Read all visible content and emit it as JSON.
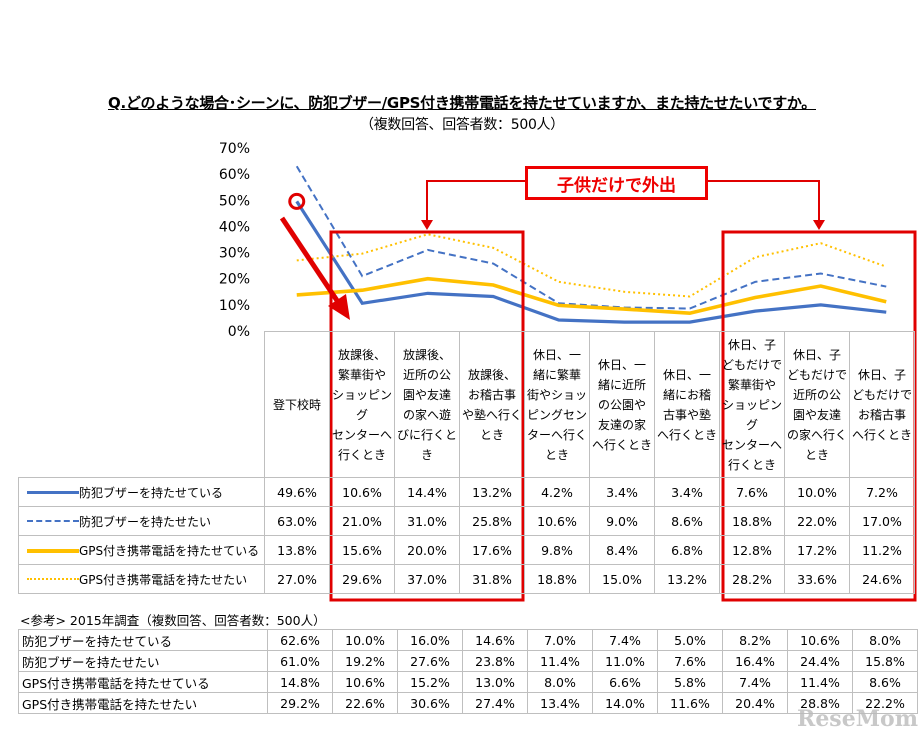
{
  "title": "Q.どのような場合･シーンに、防犯ブザー/GPS付き携帯電話を持たせていますか、また持たせたいですか。",
  "subtitle": "（複数回答、回答者数：500人）",
  "callout": "子供だけで外出",
  "reference_title": "<参考> 2015年調査（複数回答、回答者数：500人）",
  "logo": "ReseMom",
  "colors": {
    "buzzer_have": "#4472C4",
    "buzzer_want": "#4472C4",
    "gps_have": "#FFC000",
    "gps_want": "#FFC000",
    "highlight": "#E00000"
  },
  "chart_data": {
    "type": "line",
    "ylim": [
      0,
      70
    ],
    "yticks": [
      "0%",
      "10%",
      "20%",
      "30%",
      "40%",
      "50%",
      "60%",
      "70%"
    ],
    "categories": [
      "登下校時",
      "放課後、繁華街やショッピングセンターへ行くとき",
      "放課後、近所の公園や友達の家へ遊びに行くとき",
      "放課後、お稽古事や塾へ行くとき",
      "休日、一緒に繁華街やショッピングセンターへ行くとき",
      "休日、一緒に近所の公園や友達の家へ行くとき",
      "休日、一緒にお稽古事や塾へ行くとき",
      "休日、子どもだけで繁華街やショッピングセンターへ行くとき",
      "休日、子どもだけで近所の公園や友達の家へ行くとき",
      "休日、子どもだけでお稽古事へ行くとき"
    ],
    "category_lines": [
      [
        "登下校時"
      ],
      [
        "放課後、",
        "繁華街や",
        "ショッピング",
        "センターへ",
        "行くとき"
      ],
      [
        "放課後、",
        "近所の公",
        "園や友達",
        "の家へ遊",
        "びに行くと",
        "き"
      ],
      [
        "放課後、",
        "お稽古事",
        "や塾へ行く",
        "とき"
      ],
      [
        "休日、一",
        "緒に繁華",
        "街やショッ",
        "ピングセン",
        "ターへ行く",
        "とき"
      ],
      [
        "休日、一",
        "緒に近所",
        "の公園や",
        "友達の家",
        "へ行くとき"
      ],
      [
        "休日、一",
        "緒にお稽",
        "古事や塾",
        "へ行くとき"
      ],
      [
        "休日、子",
        "どもだけで",
        "繁華街や",
        "ショッピング",
        "センターへ",
        "行くとき"
      ],
      [
        "休日、子",
        "どもだけで",
        "近所の公",
        "園や友達",
        "の家へ行く",
        "とき"
      ],
      [
        "休日、子",
        "どもだけで",
        "お稽古事",
        "へ行くとき"
      ]
    ],
    "series": [
      {
        "name": "防犯ブザーを持たせている",
        "style": "solid-blue",
        "values": [
          49.6,
          10.6,
          14.4,
          13.2,
          4.2,
          3.4,
          3.4,
          7.6,
          10.0,
          7.2
        ],
        "labels": [
          "49.6%",
          "10.6%",
          "14.4%",
          "13.2%",
          "4.2%",
          "3.4%",
          "3.4%",
          "7.6%",
          "10.0%",
          "7.2%"
        ]
      },
      {
        "name": "防犯ブザーを持たせたい",
        "style": "dashed-blue",
        "values": [
          63.0,
          21.0,
          31.0,
          25.8,
          10.6,
          9.0,
          8.6,
          18.8,
          22.0,
          17.0
        ],
        "labels": [
          "63.0%",
          "21.0%",
          "31.0%",
          "25.8%",
          "10.6%",
          "9.0%",
          "8.6%",
          "18.8%",
          "22.0%",
          "17.0%"
        ]
      },
      {
        "name": "GPS付き携帯電話を持たせている",
        "style": "solid-yellow",
        "values": [
          13.8,
          15.6,
          20.0,
          17.6,
          9.8,
          8.4,
          6.8,
          12.8,
          17.2,
          11.2
        ],
        "labels": [
          "13.8%",
          "15.6%",
          "20.0%",
          "17.6%",
          "9.8%",
          "8.4%",
          "6.8%",
          "12.8%",
          "17.2%",
          "11.2%"
        ]
      },
      {
        "name": "GPS付き携帯電話を持たせたい",
        "style": "dotted-yellow",
        "values": [
          27.0,
          29.6,
          37.0,
          31.8,
          18.8,
          15.0,
          13.2,
          28.2,
          33.6,
          24.6
        ],
        "labels": [
          "27.0%",
          "29.6%",
          "37.0%",
          "31.8%",
          "18.8%",
          "15.0%",
          "13.2%",
          "28.2%",
          "33.6%",
          "24.6%"
        ]
      }
    ],
    "reference_2015": [
      {
        "name": "防犯ブザーを持たせている",
        "labels": [
          "62.6%",
          "10.0%",
          "16.0%",
          "14.6%",
          "7.0%",
          "7.4%",
          "5.0%",
          "8.2%",
          "10.6%",
          "8.0%"
        ]
      },
      {
        "name": "防犯ブザーを持たせたい",
        "labels": [
          "61.0%",
          "19.2%",
          "27.6%",
          "23.8%",
          "11.4%",
          "11.0%",
          "7.6%",
          "16.4%",
          "24.4%",
          "15.8%"
        ]
      },
      {
        "name": "GPS付き携帯電話を持たせている",
        "labels": [
          "14.8%",
          "10.6%",
          "15.2%",
          "13.0%",
          "8.0%",
          "6.6%",
          "5.8%",
          "7.4%",
          "11.4%",
          "8.6%"
        ]
      },
      {
        "name": "GPS付き携帯電話を持たせたい",
        "labels": [
          "29.2%",
          "22.6%",
          "30.6%",
          "27.4%",
          "13.4%",
          "14.0%",
          "11.6%",
          "20.4%",
          "28.8%",
          "22.2%"
        ]
      }
    ]
  }
}
